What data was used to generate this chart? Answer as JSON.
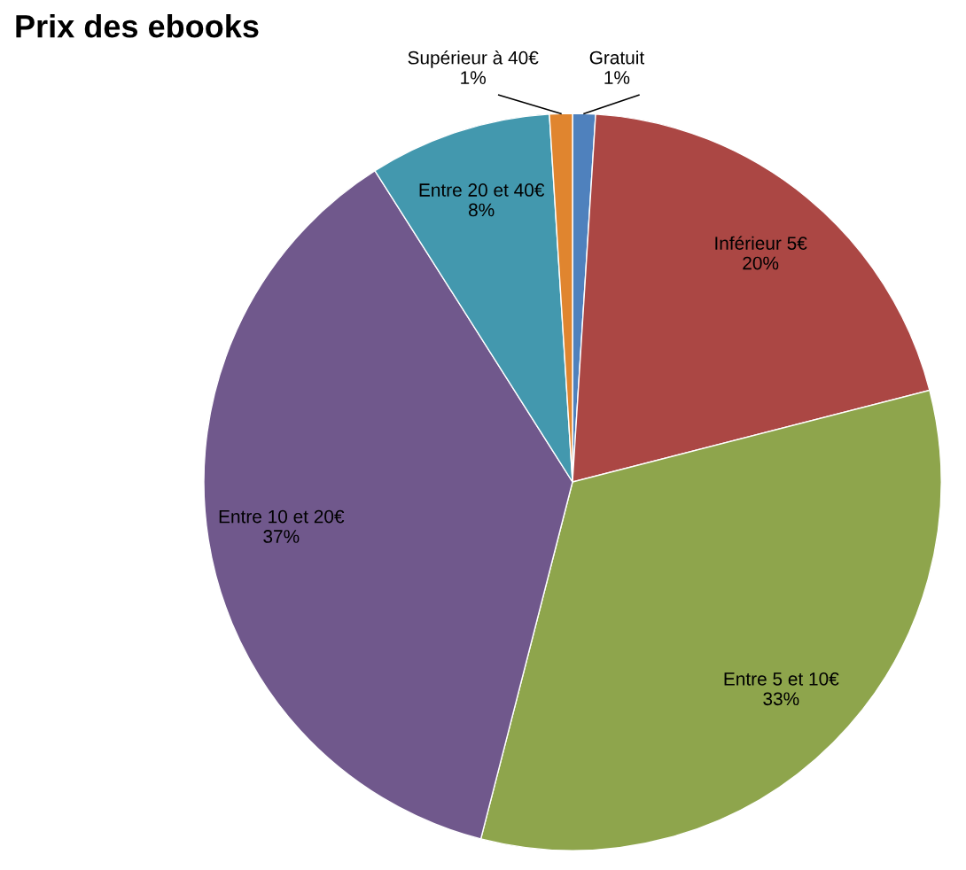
{
  "chart_data": {
    "type": "pie",
    "title": "Prix des ebooks",
    "categories": [
      "Gratuit",
      "Inférieur 5€",
      "Entre 5 et 10€",
      "Entre 10 et 20€",
      "Entre 20 et 40€",
      "Supérieur à 40€"
    ],
    "values": [
      1,
      20,
      33,
      37,
      8,
      1
    ],
    "colors": [
      "#4f81bd",
      "#ab4744",
      "#8ea54c",
      "#70588c",
      "#4398ae",
      "#e0852f"
    ],
    "value_labels": [
      "1%",
      "20%",
      "33%",
      "37%",
      "8%",
      "1%"
    ],
    "legend": false
  }
}
